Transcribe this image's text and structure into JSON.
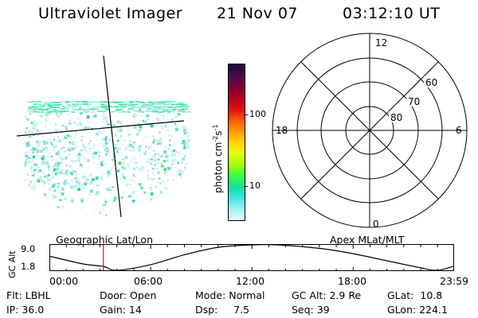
{
  "header": {
    "title": "Ultraviolet Imager",
    "date": "21 Nov 07",
    "time": "03:12:10 UT"
  },
  "colorbar": {
    "unit_label": "photon cm",
    "unit_exp1": "-2",
    "unit_s": "s",
    "unit_exp2": "-1",
    "ticks": [
      "100",
      "10"
    ],
    "colors": [
      "#1a0a3a",
      "#4a0a4a",
      "#7a0040",
      "#b00020",
      "#e01010",
      "#ff5a00",
      "#ff9a00",
      "#ffd400",
      "#e8ff00",
      "#a8ff00",
      "#40ff40",
      "#10e0a0",
      "#40e8e8",
      "#a8f0f0",
      "#e8f8f8"
    ]
  },
  "polar": {
    "hour_labels": {
      "top": "12",
      "left": "18",
      "right": "6",
      "bottom": "0"
    },
    "lat_labels": [
      "60",
      "70",
      "80"
    ]
  },
  "geo_label": "Geographic Lat/Lon",
  "apex_label": "Apex MLat/MLT",
  "altitude_plot": {
    "ylabel": "GC Alt",
    "yticks": [
      "9.0",
      "1.8"
    ],
    "xticks": [
      "00:00",
      "06:00",
      "12:00",
      "18:00",
      "23:59"
    ],
    "marker_color": "#ff0000"
  },
  "info": {
    "row1": [
      "Flt: LBHL",
      "Door: Open",
      "Mode: Normal",
      "GC Alt: 2.9 Re",
      "GLat:  10.8"
    ],
    "row2": [
      "IP: 36.0",
      "Gain: 14",
      "Dsp:     7.5",
      "Seq: 39",
      "GLon: 224.1"
    ]
  },
  "chart_data": {
    "type": "line",
    "title": "",
    "xlabel": "",
    "ylabel": "GC Alt",
    "x": [
      "00:00",
      "02:00",
      "03:12",
      "04:00",
      "06:00",
      "08:00",
      "10:00",
      "12:00",
      "13:30",
      "16:00",
      "18:00",
      "20:00",
      "22:00",
      "23:00",
      "23:59"
    ],
    "values": [
      5.8,
      3.6,
      2.9,
      1.8,
      3.4,
      6.2,
      8.3,
      9.0,
      9.0,
      8.0,
      6.5,
      4.5,
      2.5,
      1.8,
      3.0
    ],
    "ylim": [
      1.8,
      9.0
    ],
    "marker_time": "03:12"
  }
}
